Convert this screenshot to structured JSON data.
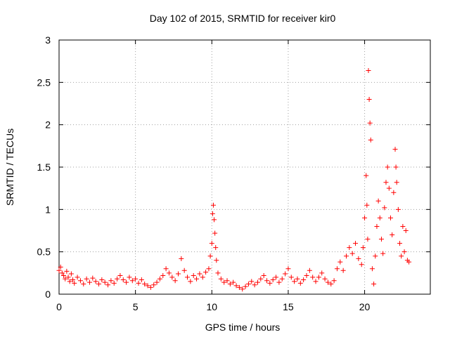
{
  "chart_data": {
    "type": "scatter",
    "title": "Day 102 of 2015, SRMTID for receiver kir0",
    "xlabel": "GPS time / hours",
    "ylabel": "SRMTID / TECUs",
    "xlim": [
      0,
      24.3
    ],
    "ylim": [
      0,
      3
    ],
    "xticks": [
      0,
      5,
      10,
      15,
      20
    ],
    "xtick_labels": [
      "0",
      "5",
      "10",
      "15",
      "20"
    ],
    "yticks": [
      0,
      0.5,
      1,
      1.5,
      2,
      2.5,
      3
    ],
    "ytick_labels": [
      "0",
      "0.5",
      "1",
      "1.5",
      "2",
      "2.5",
      "3"
    ],
    "grid": true,
    "marker": "+",
    "series": [
      {
        "name": "SRMTID",
        "color": "#ff0000",
        "x": [
          0.0,
          0.1,
          0.2,
          0.3,
          0.4,
          0.5,
          0.6,
          0.7,
          0.8,
          0.9,
          1.0,
          1.2,
          1.4,
          1.6,
          1.8,
          2.0,
          2.2,
          2.4,
          2.6,
          2.8,
          3.0,
          3.2,
          3.4,
          3.6,
          3.8,
          4.0,
          4.2,
          4.4,
          4.6,
          4.8,
          5.0,
          5.2,
          5.4,
          5.6,
          5.8,
          6.0,
          6.2,
          6.4,
          6.6,
          6.8,
          7.0,
          7.2,
          7.4,
          7.6,
          7.8,
          8.0,
          8.2,
          8.4,
          8.6,
          8.8,
          9.0,
          9.2,
          9.4,
          9.6,
          9.8,
          9.9,
          10.0,
          10.05,
          10.1,
          10.15,
          10.2,
          10.25,
          10.3,
          10.4,
          10.6,
          10.8,
          11.0,
          11.2,
          11.4,
          11.6,
          11.8,
          12.0,
          12.2,
          12.4,
          12.6,
          12.8,
          13.0,
          13.2,
          13.4,
          13.6,
          13.8,
          14.0,
          14.2,
          14.4,
          14.6,
          14.8,
          15.0,
          15.2,
          15.4,
          15.6,
          15.8,
          16.0,
          16.2,
          16.4,
          16.6,
          16.8,
          17.0,
          17.2,
          17.4,
          17.6,
          17.8,
          18.0,
          18.2,
          18.4,
          18.6,
          18.8,
          19.0,
          19.2,
          19.4,
          19.6,
          19.8,
          19.9,
          20.0,
          20.1,
          20.15,
          20.2,
          20.25,
          20.3,
          20.35,
          20.4,
          20.5,
          20.6,
          20.7,
          20.8,
          20.9,
          21.0,
          21.1,
          21.2,
          21.3,
          21.4,
          21.5,
          21.6,
          21.7,
          21.8,
          21.9,
          22.0,
          22.05,
          22.1,
          22.2,
          22.3,
          22.4,
          22.5,
          22.6,
          22.7,
          22.8,
          22.9
        ],
        "y": [
          0.28,
          0.32,
          0.25,
          0.22,
          0.18,
          0.27,
          0.2,
          0.15,
          0.24,
          0.17,
          0.13,
          0.2,
          0.16,
          0.12,
          0.18,
          0.14,
          0.19,
          0.15,
          0.12,
          0.17,
          0.14,
          0.11,
          0.16,
          0.13,
          0.18,
          0.22,
          0.17,
          0.14,
          0.2,
          0.16,
          0.18,
          0.13,
          0.17,
          0.12,
          0.1,
          0.08,
          0.11,
          0.14,
          0.18,
          0.22,
          0.3,
          0.25,
          0.2,
          0.16,
          0.24,
          0.42,
          0.28,
          0.2,
          0.15,
          0.22,
          0.18,
          0.24,
          0.2,
          0.26,
          0.3,
          0.45,
          0.6,
          0.95,
          1.05,
          0.88,
          0.72,
          0.55,
          0.4,
          0.25,
          0.18,
          0.14,
          0.16,
          0.12,
          0.14,
          0.1,
          0.08,
          0.06,
          0.09,
          0.12,
          0.15,
          0.11,
          0.14,
          0.18,
          0.22,
          0.16,
          0.13,
          0.17,
          0.2,
          0.14,
          0.18,
          0.24,
          0.3,
          0.2,
          0.15,
          0.18,
          0.13,
          0.17,
          0.22,
          0.28,
          0.2,
          0.15,
          0.2,
          0.25,
          0.18,
          0.14,
          0.12,
          0.16,
          0.3,
          0.38,
          0.28,
          0.45,
          0.55,
          0.48,
          0.6,
          0.42,
          0.35,
          0.55,
          0.9,
          1.4,
          1.05,
          0.65,
          2.64,
          2.3,
          2.02,
          1.82,
          0.3,
          0.12,
          0.45,
          0.8,
          1.1,
          0.9,
          0.65,
          0.48,
          1.02,
          1.32,
          1.5,
          1.25,
          0.9,
          0.7,
          1.2,
          1.71,
          1.5,
          1.32,
          1.0,
          0.6,
          0.45,
          0.8,
          0.5,
          0.75,
          0.4,
          0.38
        ]
      }
    ]
  }
}
